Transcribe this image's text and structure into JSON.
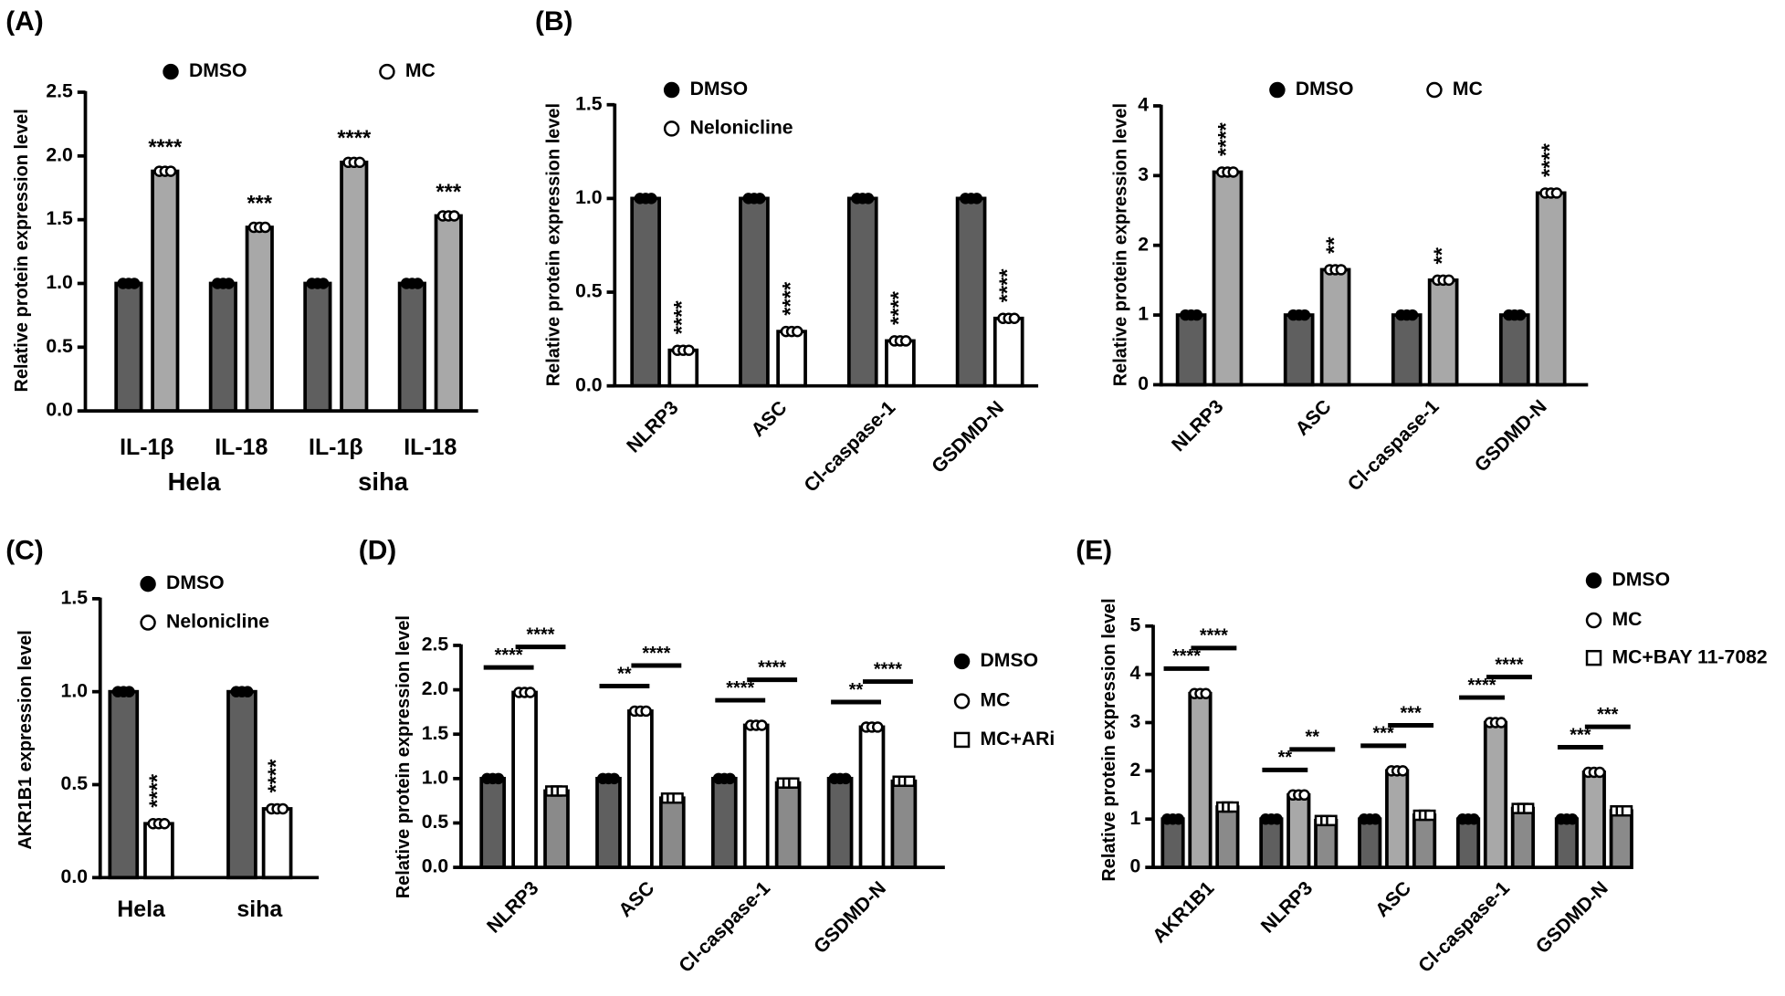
{
  "chart_data": [
    {
      "type": "bar",
      "panel_label": "(A)",
      "ylabel": "Relative protein expression level",
      "categories": [
        "IL-1β",
        "IL-18",
        "IL-1β",
        "IL-18"
      ],
      "group_labels": [
        "Hela",
        "siha"
      ],
      "series": [
        {
          "name": "DMSO",
          "color": "#5f5f5f",
          "marker": "filled-circle",
          "values": [
            1,
            1,
            1,
            1
          ]
        },
        {
          "name": "MC",
          "color": "#a8a8a8",
          "marker": "open-circle",
          "values": [
            1.88,
            1.44,
            1.95,
            1.53
          ]
        }
      ],
      "significance": [
        [
          "****",
          "***",
          "****",
          "***"
        ]
      ],
      "significance_rotated": false,
      "rotated_categories": false,
      "ylim": [
        0,
        2.5
      ],
      "yticks": [
        {
          "value": 0,
          "label": "0.0"
        },
        {
          "value": 0.5,
          "label": "0.5"
        },
        {
          "value": 1,
          "label": "1.0"
        },
        {
          "value": 1.5,
          "label": "1.5"
        },
        {
          "value": 2,
          "label": "2.0"
        },
        {
          "value": 2.5,
          "label": "2.5"
        }
      ]
    },
    {
      "type": "bar",
      "panel_label": "(B)",
      "ylabel": "Relative protein expression level",
      "categories": [
        "NLRP3",
        "ASC",
        "Cl-caspase-1",
        "GSDMD-N"
      ],
      "series": [
        {
          "name": "DMSO",
          "color": "#5f5f5f",
          "marker": "filled-circle",
          "values": [
            1,
            1,
            1,
            1
          ]
        },
        {
          "name": "Nelonicline",
          "color": "#ffffff",
          "marker": "open-circle",
          "values": [
            0.19,
            0.29,
            0.24,
            0.36
          ]
        }
      ],
      "significance": [
        [
          "****",
          "****",
          "****",
          "****"
        ]
      ],
      "significance_rotated": true,
      "rotated_categories": true,
      "ylim": [
        0,
        1.5
      ],
      "yticks": [
        {
          "value": 0,
          "label": "0.0"
        },
        {
          "value": 0.5,
          "label": "0.5"
        },
        {
          "value": 1,
          "label": "1.0"
        },
        {
          "value": 1.5,
          "label": "1.5"
        }
      ]
    },
    {
      "type": "bar",
      "ylabel": "Relative protein expression level",
      "categories": [
        "NLRP3",
        "ASC",
        "Cl-caspase-1",
        "GSDMD-N"
      ],
      "series": [
        {
          "name": "DMSO",
          "color": "#5f5f5f",
          "marker": "filled-circle",
          "values": [
            1,
            1,
            1,
            1
          ]
        },
        {
          "name": "MC",
          "color": "#a8a8a8",
          "marker": "open-circle",
          "values": [
            3.05,
            1.65,
            1.5,
            2.75
          ]
        }
      ],
      "significance": [
        [
          "****",
          "**",
          "**",
          "****"
        ]
      ],
      "significance_rotated": true,
      "rotated_categories": true,
      "ylim": [
        0,
        4
      ],
      "yticks": [
        0,
        1,
        2,
        3,
        4
      ]
    },
    {
      "type": "bar",
      "panel_label": "(C)",
      "ylabel": "AKR1B1 expression level",
      "categories": [
        "Hela",
        "siha"
      ],
      "series": [
        {
          "name": "DMSO",
          "color": "#5f5f5f",
          "marker": "filled-circle",
          "values": [
            1,
            1
          ]
        },
        {
          "name": "Nelonicline",
          "color": "#ffffff",
          "marker": "open-circle",
          "values": [
            0.29,
            0.37
          ]
        }
      ],
      "significance": [
        [
          "****",
          "****"
        ]
      ],
      "significance_rotated": true,
      "rotated_categories": false,
      "ylim": [
        0,
        1.5
      ],
      "yticks": [
        {
          "value": 0,
          "label": "0.0"
        },
        {
          "value": 0.5,
          "label": "0.5"
        },
        {
          "value": 1,
          "label": "1.0"
        },
        {
          "value": 1.5,
          "label": "1.5"
        }
      ]
    },
    {
      "type": "bar",
      "panel_label": "(D)",
      "ylabel": "Relative protein expression level",
      "categories": [
        "NLRP3",
        "ASC",
        "Cl-caspase-1",
        "GSDMD-N"
      ],
      "series": [
        {
          "name": "DMSO",
          "color": "#5f5f5f",
          "marker": "filled-circle",
          "values": [
            1,
            1,
            1,
            1
          ]
        },
        {
          "name": "MC",
          "color": "#ffffff",
          "marker": "open-circle",
          "values": [
            1.97,
            1.76,
            1.6,
            1.58
          ]
        },
        {
          "name": "MC+ARi",
          "color": "#8a8a8a",
          "marker": "open-square",
          "values": [
            0.86,
            0.78,
            0.95,
            0.97
          ]
        }
      ],
      "significance": [
        [
          "****",
          "**",
          "****",
          "**"
        ],
        [
          "****",
          "****",
          "****",
          "****"
        ]
      ],
      "significance_rotated": false,
      "rotated_categories": true,
      "ylim": [
        0,
        2.5
      ],
      "yticks": [
        {
          "value": 0,
          "label": "0.0"
        },
        {
          "value": 0.5,
          "label": "0.5"
        },
        {
          "value": 1,
          "label": "1.0"
        },
        {
          "value": 1.5,
          "label": "1.5"
        },
        {
          "value": 2,
          "label": "2.0"
        },
        {
          "value": 2.5,
          "label": "2.5"
        }
      ]
    },
    {
      "type": "bar",
      "panel_label": "(E)",
      "ylabel": "Relative protein expression level",
      "categories": [
        "AKR1B1",
        "NLRP3",
        "ASC",
        "Cl-caspase-1",
        "GSDMD-N"
      ],
      "series": [
        {
          "name": "DMSO",
          "color": "#5f5f5f",
          "marker": "filled-circle",
          "values": [
            1,
            1,
            1,
            1,
            1
          ]
        },
        {
          "name": "MC",
          "color": "#a8a8a8",
          "marker": "open-circle",
          "values": [
            3.6,
            1.5,
            2.0,
            3.0,
            1.97
          ]
        },
        {
          "name": "MC+BAY 11-7082",
          "color": "#8a8a8a",
          "marker": "open-square",
          "values": [
            1.25,
            0.97,
            1.08,
            1.22,
            1.17
          ]
        }
      ],
      "significance": [
        [
          "****",
          "**",
          "***",
          "****",
          "***"
        ],
        [
          "****",
          "**",
          "***",
          "****",
          "***"
        ]
      ],
      "significance_rotated": false,
      "rotated_categories": true,
      "ylim": [
        0,
        5
      ],
      "yticks": [
        0,
        1,
        2,
        3,
        4,
        5
      ]
    }
  ]
}
